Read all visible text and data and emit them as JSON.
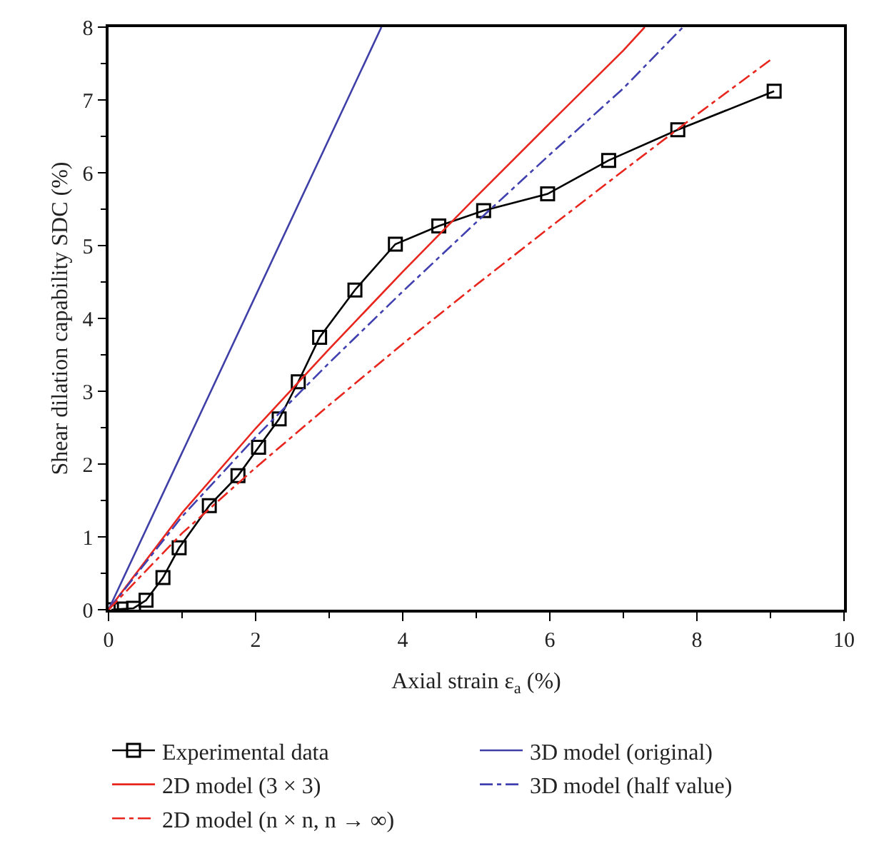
{
  "chart_data": {
    "type": "line",
    "xlabel": "Axial strain ε$_{a}$ (%)",
    "ylabel": "Shear dilation capability SDC (%)",
    "xlim": [
      0,
      10
    ],
    "xticks": [
      0,
      2,
      4,
      6,
      8,
      10
    ],
    "ylim": [
      0,
      8
    ],
    "yticks": [
      0,
      1,
      2,
      3,
      4,
      5,
      6,
      7,
      8
    ],
    "legend": "bottom",
    "series": [
      {
        "name": "Experimental data",
        "color": "#000000",
        "marker": "square",
        "line_style": "solid",
        "x": [
          0.04,
          0.17,
          0.34,
          0.51,
          0.74,
          0.96,
          1.37,
          1.76,
          2.04,
          2.32,
          2.58,
          2.87,
          3.35,
          3.9,
          4.49,
          5.1,
          5.97,
          6.8,
          7.74,
          9.05
        ],
        "values": [
          0,
          0.01,
          0.02,
          0.13,
          0.44,
          0.85,
          1.43,
          1.84,
          2.23,
          2.62,
          3.13,
          3.74,
          4.39,
          5.02,
          5.27,
          5.48,
          5.71,
          6.17,
          6.59,
          7.12
        ]
      },
      {
        "name": "3D model (original)",
        "color": "#3f3fa8",
        "line_style": "solid",
        "x": [
          0,
          3.71
        ],
        "values": [
          0,
          8
        ]
      },
      {
        "name": "2D model (3 × 3)",
        "color": "#e8261e",
        "line_style": "solid",
        "x": [
          0,
          1,
          2,
          3,
          4,
          5,
          6,
          7,
          7.29
        ],
        "values": [
          0,
          1.33,
          2.49,
          3.58,
          4.64,
          5.67,
          6.68,
          7.68,
          8
        ]
      },
      {
        "name": "3D model (half value)",
        "color": "#4040b0",
        "line_style": "dashdot",
        "x": [
          0,
          1,
          2,
          3,
          4,
          5,
          6,
          7,
          7.81
        ],
        "values": [
          0,
          1.28,
          2.37,
          3.39,
          4.37,
          5.32,
          6.25,
          7.16,
          8
        ]
      },
      {
        "name": "2D model (n × n, n → ∞)",
        "color": "#e8261e",
        "line_style": "dashdot",
        "x": [
          0,
          1,
          2,
          3,
          4,
          5,
          6,
          7,
          8,
          9
        ],
        "values": [
          0,
          1.05,
          1.95,
          2.81,
          3.65,
          4.46,
          5.25,
          6.03,
          6.8,
          7.55
        ]
      }
    ]
  }
}
